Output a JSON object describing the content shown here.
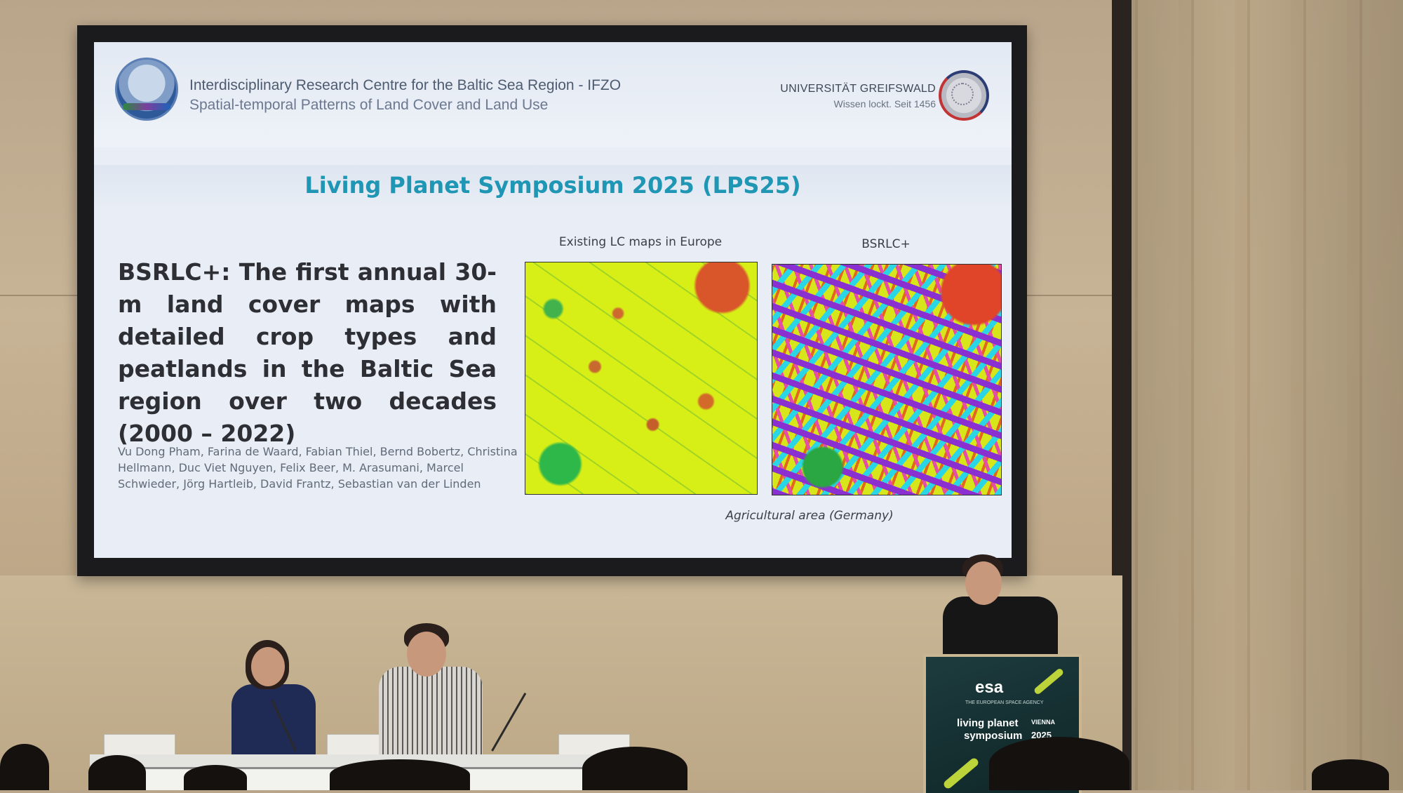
{
  "slide": {
    "header_line1": "Interdisciplinary Research Centre for the Baltic Sea Region - IFZO",
    "header_line2": "Spatial-temporal Patterns of Land Cover and Land Use",
    "university_name": "UNIVERSITÄT GREIFSWALD",
    "university_motto": "Wissen lockt. Seit 1456",
    "title": "Living Planet Symposium 2025 (LPS25)",
    "main_text": "BSRLC+: The first annual 30-m land cover maps with detailed crop types and peatlands in the Baltic Sea region over two decades (2000 – 2022)",
    "authors": "Vu Dong Pham, Farina de Waard, Fabian Thiel, Bernd Bobertz, Christina Hellmann, Duc Viet Nguyen, Felix Beer, M. Arasumani, Marcel Schwieder, Jörg Hartleib, David Frantz, Sebastian van der Linden",
    "map_left_label": "Existing LC maps in Europe",
    "map_right_label": "BSRLC+",
    "map_caption": "Agricultural area (Germany)"
  },
  "podium": {
    "logo": "esa",
    "agency": "THE EUROPEAN SPACE AGENCY",
    "event_line1": "living planet",
    "event_line2": "symposium",
    "city": "VIENNA",
    "year": "2025"
  }
}
